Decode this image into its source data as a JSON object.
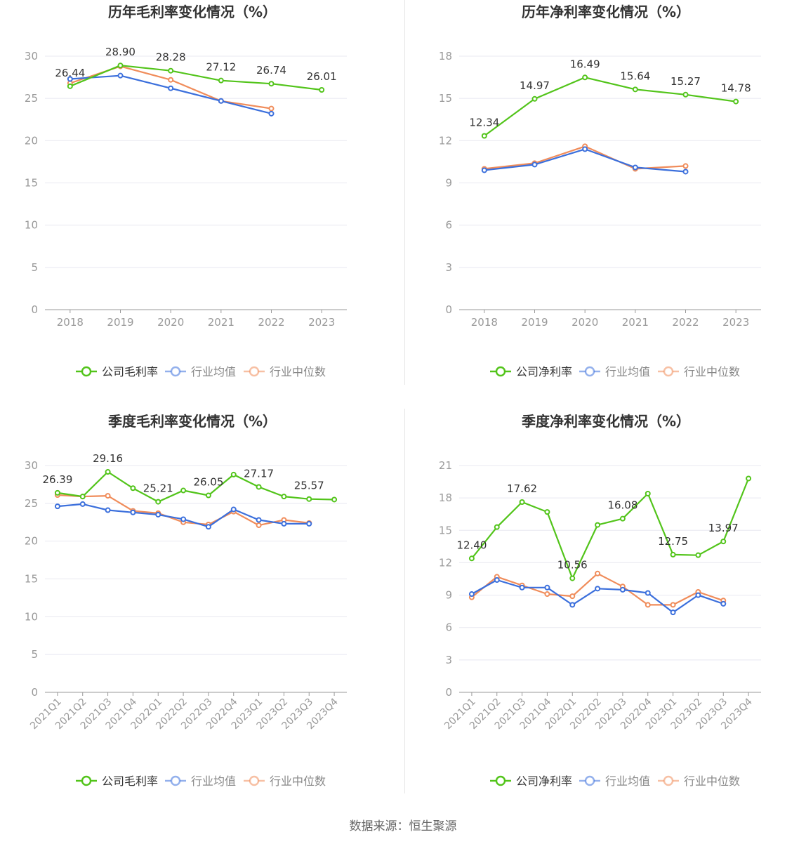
{
  "colors": {
    "company": "#52c41a",
    "industry_avg": "#3b6fdc",
    "industry_median": "#f08c5a",
    "grid": "#e8e8f0",
    "axis": "#999999",
    "tick": "#999999",
    "title": "#333333",
    "label": "#333333"
  },
  "source_text": "数据来源：恒生聚源",
  "chart_data": [
    {
      "type": "line",
      "title": "历年毛利率变化情况（%）",
      "categories": [
        "2018",
        "2019",
        "2020",
        "2021",
        "2022",
        "2023"
      ],
      "ylim": [
        0,
        30
      ],
      "yticks": [
        0,
        5,
        10,
        15,
        20,
        25,
        30
      ],
      "grid": true,
      "legend_position": "bottom",
      "rotate_x": false,
      "series": [
        {
          "name": "公司毛利率",
          "color_key": "company",
          "values": [
            26.44,
            28.9,
            28.28,
            27.12,
            26.74,
            26.01
          ]
        },
        {
          "name": "行业均值",
          "color_key": "industry_avg",
          "values": [
            27.3,
            27.7,
            26.2,
            24.7,
            23.2,
            null
          ]
        },
        {
          "name": "行业中位数",
          "color_key": "industry_median",
          "values": [
            26.8,
            28.8,
            27.2,
            24.7,
            23.8,
            null
          ]
        }
      ],
      "data_labels": [
        {
          "index": 0,
          "text": "26.44"
        },
        {
          "index": 1,
          "text": "28.90"
        },
        {
          "index": 2,
          "text": "28.28"
        },
        {
          "index": 3,
          "text": "27.12"
        },
        {
          "index": 4,
          "text": "26.74"
        },
        {
          "index": 5,
          "text": "26.01"
        }
      ]
    },
    {
      "type": "line",
      "title": "历年净利率变化情况（%）",
      "categories": [
        "2018",
        "2019",
        "2020",
        "2021",
        "2022",
        "2023"
      ],
      "ylim": [
        0,
        18
      ],
      "yticks": [
        0,
        3,
        6,
        9,
        12,
        15,
        18
      ],
      "grid": true,
      "legend_position": "bottom",
      "rotate_x": false,
      "series": [
        {
          "name": "公司净利率",
          "color_key": "company",
          "values": [
            12.34,
            14.97,
            16.49,
            15.64,
            15.27,
            14.78
          ]
        },
        {
          "name": "行业均值",
          "color_key": "industry_avg",
          "values": [
            9.9,
            10.3,
            11.4,
            10.1,
            9.8,
            null
          ]
        },
        {
          "name": "行业中位数",
          "color_key": "industry_median",
          "values": [
            10.0,
            10.4,
            11.6,
            10.0,
            10.2,
            null
          ]
        }
      ],
      "data_labels": [
        {
          "index": 0,
          "text": "12.34"
        },
        {
          "index": 1,
          "text": "14.97"
        },
        {
          "index": 2,
          "text": "16.49"
        },
        {
          "index": 3,
          "text": "15.64"
        },
        {
          "index": 4,
          "text": "15.27"
        },
        {
          "index": 5,
          "text": "14.78"
        }
      ]
    },
    {
      "type": "line",
      "title": "季度毛利率变化情况（%）",
      "categories": [
        "2021Q1",
        "2021Q2",
        "2021Q3",
        "2021Q4",
        "2022Q1",
        "2022Q2",
        "2022Q3",
        "2022Q4",
        "2023Q1",
        "2023Q2",
        "2023Q3",
        "2023Q4"
      ],
      "ylim": [
        0,
        30
      ],
      "yticks": [
        0,
        5,
        10,
        15,
        20,
        25,
        30
      ],
      "grid": true,
      "legend_position": "bottom",
      "rotate_x": true,
      "series": [
        {
          "name": "公司毛利率",
          "color_key": "company",
          "values": [
            26.39,
            25.9,
            29.16,
            27.0,
            25.21,
            26.7,
            26.05,
            28.8,
            27.17,
            25.9,
            25.57,
            25.5
          ]
        },
        {
          "name": "行业均值",
          "color_key": "industry_avg",
          "values": [
            24.6,
            24.9,
            24.1,
            23.8,
            23.5,
            22.9,
            21.9,
            24.2,
            22.8,
            22.3,
            22.3,
            null
          ]
        },
        {
          "name": "行业中位数",
          "color_key": "industry_median",
          "values": [
            26.1,
            25.9,
            26.0,
            24.0,
            23.7,
            22.5,
            22.2,
            23.9,
            22.1,
            22.8,
            22.4,
            null
          ]
        }
      ],
      "data_labels": [
        {
          "index": 0,
          "text": "26.39"
        },
        {
          "index": 2,
          "text": "29.16"
        },
        {
          "index": 4,
          "text": "25.21"
        },
        {
          "index": 6,
          "text": "26.05"
        },
        {
          "index": 8,
          "text": "27.17"
        },
        {
          "index": 10,
          "text": "25.57"
        }
      ]
    },
    {
      "type": "line",
      "title": "季度净利率变化情况（%）",
      "categories": [
        "2021Q1",
        "2021Q2",
        "2021Q3",
        "2021Q4",
        "2022Q1",
        "2022Q2",
        "2022Q3",
        "2022Q4",
        "2023Q1",
        "2023Q2",
        "2023Q3",
        "2023Q4"
      ],
      "ylim": [
        0,
        21
      ],
      "yticks": [
        0,
        3,
        6,
        9,
        12,
        15,
        18,
        21
      ],
      "grid": true,
      "legend_position": "bottom",
      "rotate_x": true,
      "series": [
        {
          "name": "公司净利率",
          "color_key": "company",
          "values": [
            12.4,
            15.3,
            17.62,
            16.7,
            10.56,
            15.5,
            16.08,
            18.4,
            12.75,
            12.7,
            13.97,
            19.8
          ]
        },
        {
          "name": "行业均值",
          "color_key": "industry_avg",
          "values": [
            9.1,
            10.4,
            9.7,
            9.7,
            8.1,
            9.6,
            9.5,
            9.2,
            7.4,
            9.0,
            8.2,
            null
          ]
        },
        {
          "name": "行业中位数",
          "color_key": "industry_median",
          "values": [
            8.8,
            10.7,
            9.9,
            9.1,
            8.9,
            11.0,
            9.8,
            8.1,
            8.1,
            9.3,
            8.5,
            null
          ]
        }
      ],
      "data_labels": [
        {
          "index": 0,
          "text": "12.40"
        },
        {
          "index": 2,
          "text": "17.62"
        },
        {
          "index": 4,
          "text": "10.56"
        },
        {
          "index": 6,
          "text": "16.08"
        },
        {
          "index": 8,
          "text": "12.75"
        },
        {
          "index": 10,
          "text": "13.97"
        }
      ]
    }
  ]
}
